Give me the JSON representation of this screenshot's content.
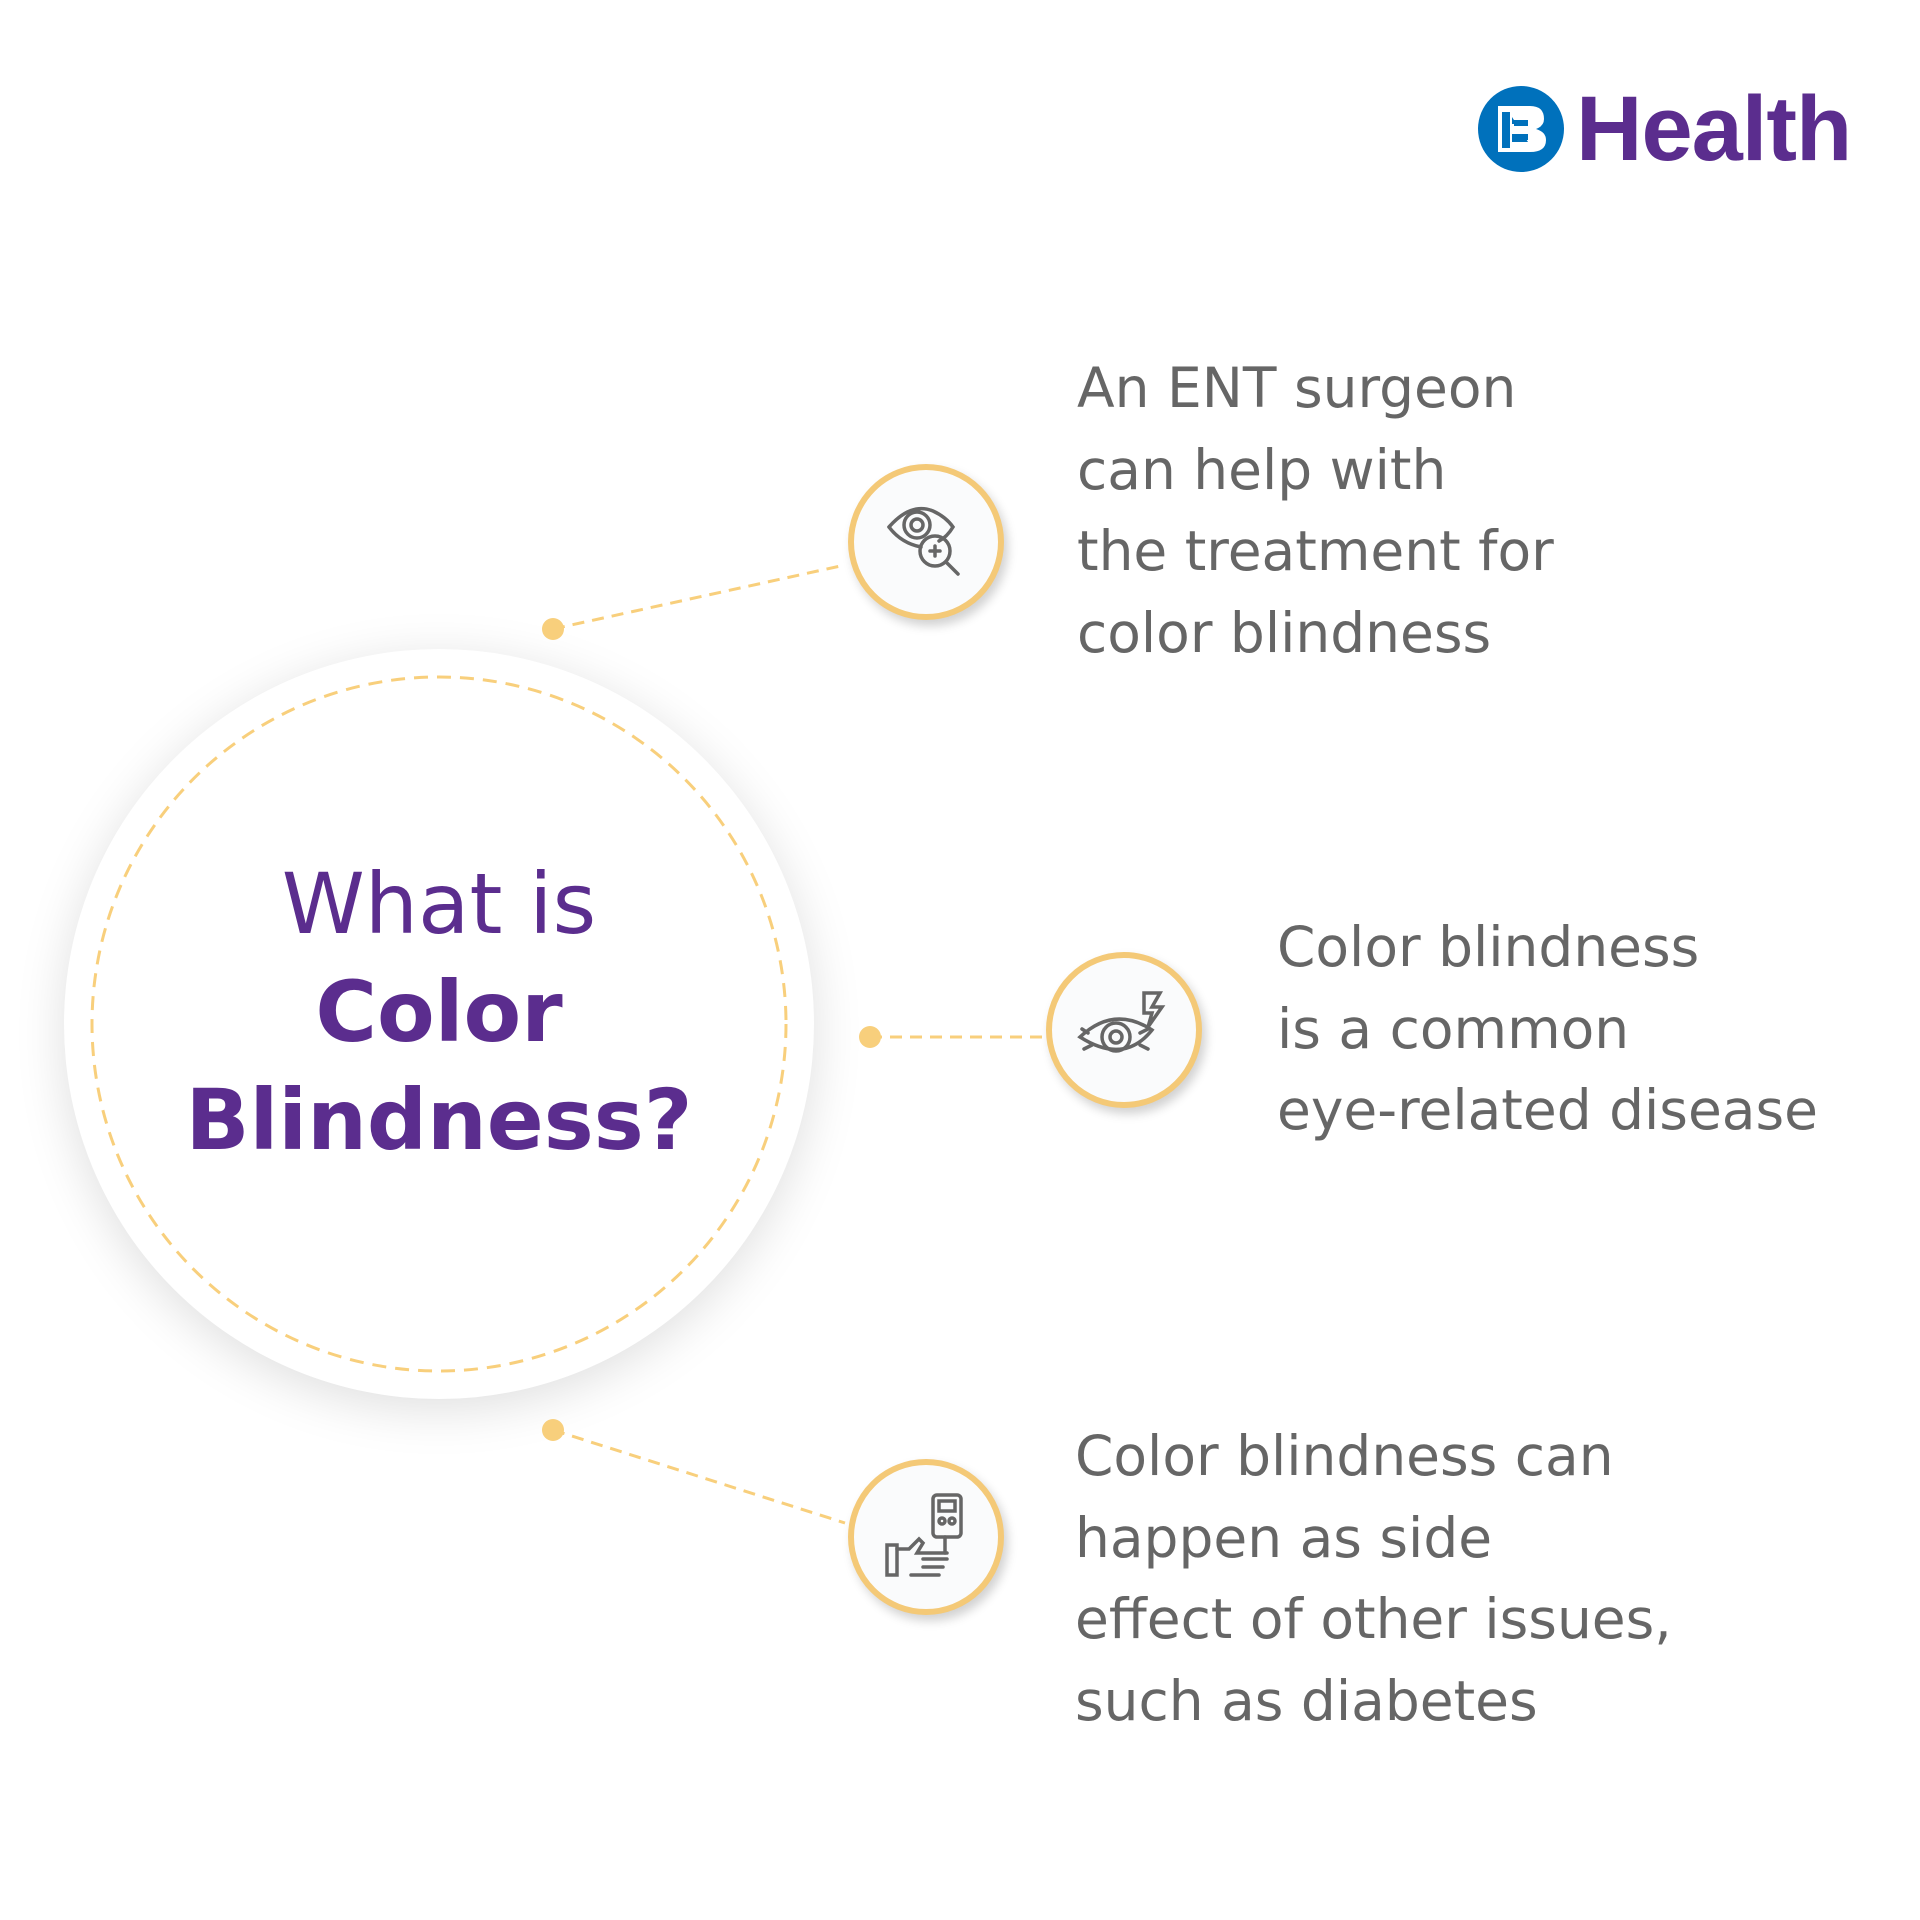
{
  "brand": {
    "logo_mark": "B",
    "name": "Health",
    "colors": {
      "mark": "#0071bc",
      "text": "#5b2d8e"
    }
  },
  "title": {
    "line1": "What is",
    "line2": "Color",
    "line3": "Blindness?"
  },
  "colors": {
    "accent": "#f4c977",
    "title": "#5b2d8e",
    "body_text": "#666666"
  },
  "points": [
    {
      "icon": "eye-magnifier-icon",
      "lines": [
        "An ENT surgeon",
        "can help with",
        "the treatment for",
        "color blindness"
      ]
    },
    {
      "icon": "irritated-eye-icon",
      "lines": [
        "Color blindness",
        "is a common",
        "eye-related disease"
      ]
    },
    {
      "icon": "glucose-meter-hand-icon",
      "lines": [
        "Color blindness can",
        "happen as side",
        "effect of other issues,",
        "such as diabetes"
      ]
    }
  ]
}
